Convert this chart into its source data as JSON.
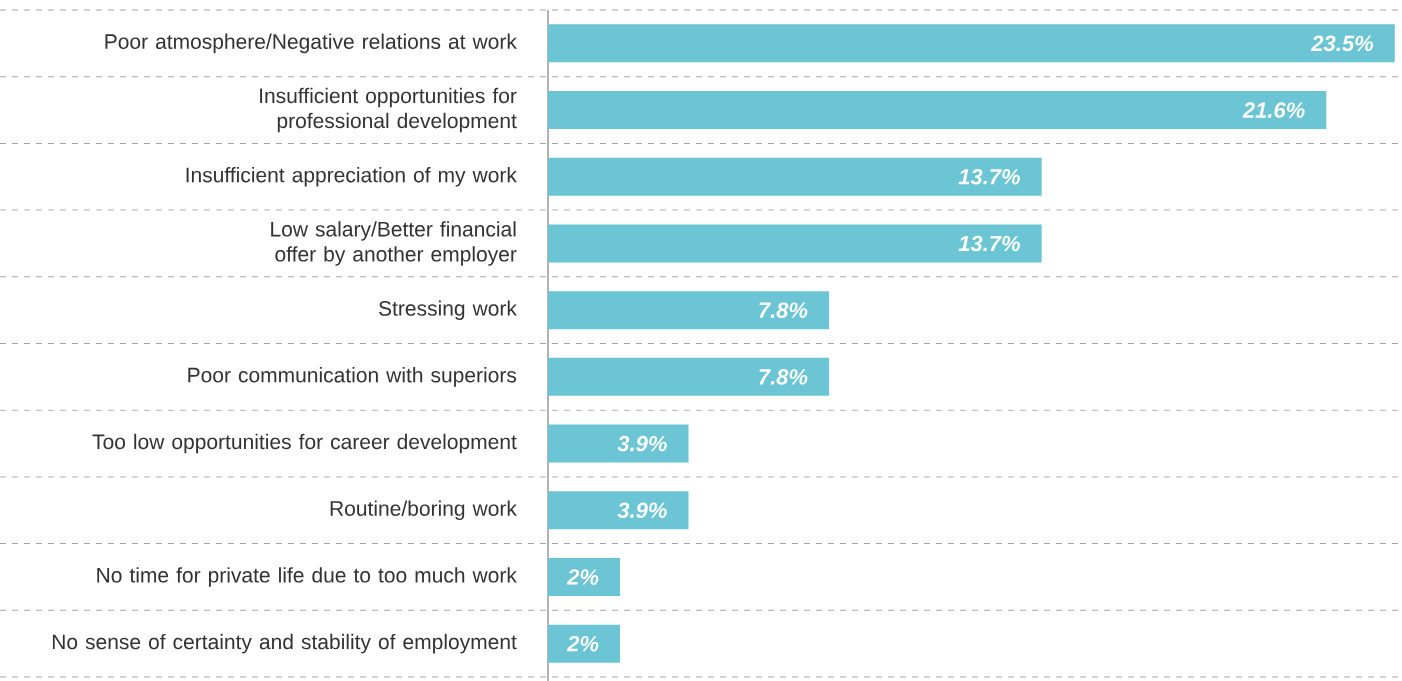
{
  "chart_data": {
    "type": "bar",
    "orientation": "horizontal",
    "categories": [
      "Poor atmosphere/Negative relations at work",
      "Insufficient opportunities for professional development",
      "Insufficient appreciation of my work",
      "Low salary/Better financial offer by another employer",
      "Stressing work",
      "Poor communication with superiors",
      "Too low opportunities for career development",
      "Routine/boring work",
      "No time for private life due to too much work",
      "No sense of certainty and stability of employment"
    ],
    "values": [
      23.5,
      21.6,
      13.7,
      13.7,
      7.8,
      7.8,
      3.9,
      3.9,
      2,
      2
    ],
    "value_labels": [
      "23.5%",
      "21.6%",
      "13.7%",
      "13.7%",
      "7.8%",
      "7.8%",
      "3.9%",
      "3.9%",
      "2%",
      "2%"
    ],
    "color": "#6cc5d4",
    "xlim": [
      0,
      23.7
    ],
    "grid": "y"
  }
}
